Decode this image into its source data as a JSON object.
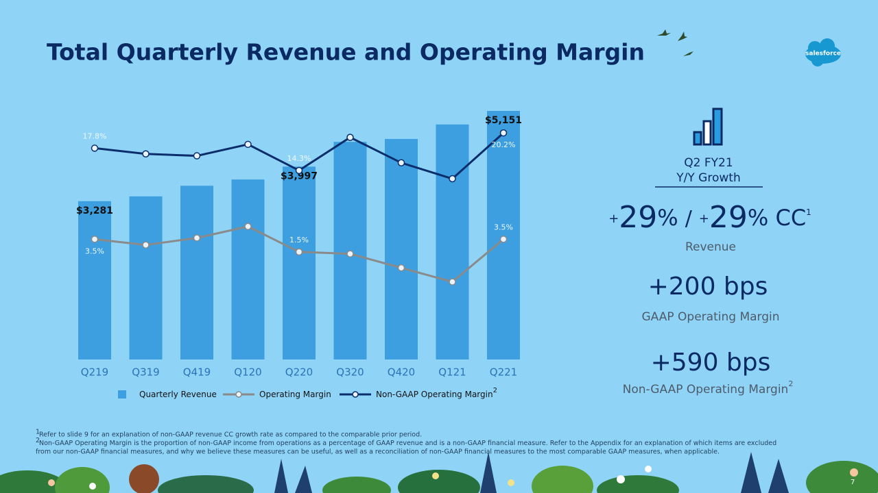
{
  "header": {
    "title": "Total Quarterly Revenue and Operating Margin",
    "logo": "salesforce"
  },
  "chart_data": {
    "type": "bar",
    "categories": [
      "Q219",
      "Q319",
      "Q419",
      "Q120",
      "Q220",
      "Q320",
      "Q420",
      "Q121",
      "Q221"
    ],
    "ylim": [
      0,
      5500
    ],
    "y2lim": [
      -15.4,
      26.3
    ],
    "series": [
      {
        "name": "Quarterly Revenue",
        "type": "bar",
        "color": "#3d9fe0",
        "values": [
          3281,
          3380,
          3600,
          3730,
          3997,
          4510,
          4570,
          4870,
          5151
        ],
        "value_labels": [
          "$3,281",
          null,
          null,
          null,
          "$3,997",
          null,
          null,
          null,
          "$5,151"
        ]
      },
      {
        "name": "Operating Margin",
        "type": "line",
        "axis": "y2",
        "color": "#8a8a8a",
        "values": [
          3.5,
          2.6,
          3.7,
          5.5,
          1.5,
          1.2,
          -1.0,
          -3.2,
          3.5
        ],
        "value_labels": [
          "3.5%",
          null,
          null,
          null,
          "1.5%",
          null,
          null,
          null,
          "3.5%"
        ]
      },
      {
        "name": "Non-GAAP Operating Margin",
        "type": "line",
        "axis": "y2",
        "color": "#0b2d6b",
        "values": [
          17.8,
          16.9,
          16.6,
          18.4,
          14.3,
          19.5,
          15.5,
          13.0,
          20.2
        ],
        "value_labels": [
          "17.8%",
          null,
          null,
          null,
          "14.3%",
          null,
          null,
          null,
          "20.2%"
        ],
        "note": "2"
      }
    ]
  },
  "summary": {
    "period": "Q2 FY21",
    "heading": "Y/Y Growth",
    "revenue": {
      "sign": "+",
      "number": "29",
      "unit": "%",
      "separator": "/",
      "sign_cc": "+",
      "number_cc": "29",
      "unit_cc": "% CC",
      "note": "1",
      "label": "Revenue"
    },
    "gaap": {
      "value": "+200 bps",
      "label": "GAAP Operating Margin"
    },
    "non_gaap": {
      "value": "+590 bps",
      "label": "Non-GAAP Operating Margin",
      "note": "2"
    }
  },
  "footnotes": [
    {
      "mark": "1",
      "lines": [
        "Refer to slide 9 for an explanation of non-GAAP revenue CC growth rate as compared to the comparable prior period."
      ]
    },
    {
      "mark": "2",
      "lines": [
        "Non-GAAP Operating Margin is the proportion of non-GAAP income from operations as a percentage of GAAP revenue and is a non-GAAP financial measure. Refer to the Appendix for an explanation of which items are excluded",
        "from our non-GAAP financial measures, and why we believe these measures can be useful, as well as a reconciliation of non-GAAP financial measures to the most comparable GAAP measures, when applicable."
      ]
    }
  ],
  "page_number": "7"
}
